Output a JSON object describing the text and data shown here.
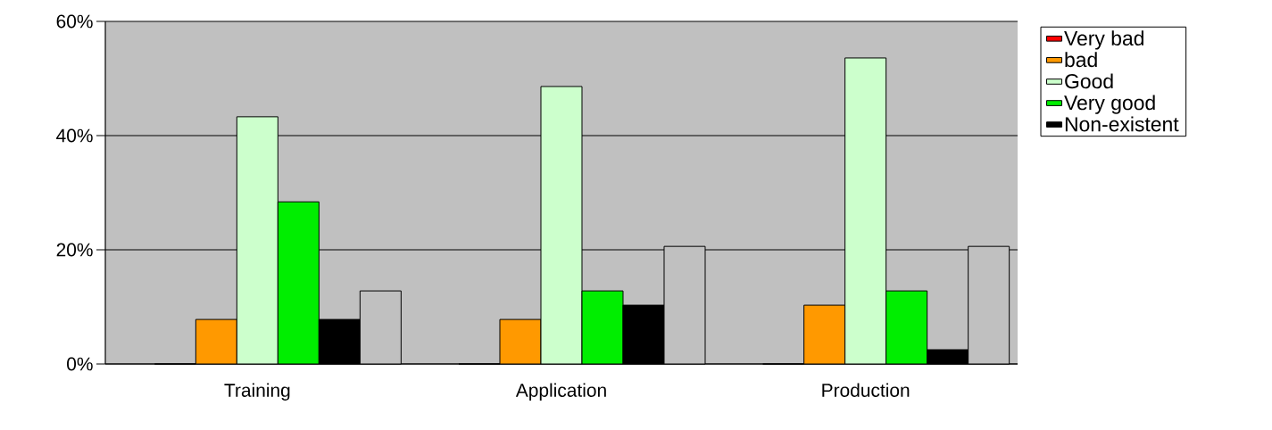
{
  "chart_data": {
    "type": "bar",
    "categories": [
      "Training",
      "Application",
      "Production"
    ],
    "series": [
      {
        "name": "Very bad",
        "color": "#ff0000",
        "values": [
          0,
          0,
          0
        ]
      },
      {
        "name": "bad",
        "color": "#ff9900",
        "values": [
          7.8,
          7.8,
          10.3
        ]
      },
      {
        "name": "Good",
        "color": "#ccffcc",
        "values": [
          43.3,
          48.6,
          53.6
        ]
      },
      {
        "name": "Very good",
        "color": "#00ee00",
        "values": [
          28.4,
          12.8,
          12.8
        ]
      },
      {
        "name": "Non-existent",
        "color": "#000000",
        "values": [
          7.8,
          10.3,
          2.5
        ]
      },
      {
        "color": "#c0c0c0",
        "values": [
          12.8,
          20.6,
          20.6
        ]
      }
    ],
    "ylim": [
      0,
      60
    ],
    "yticks": [
      {
        "value": 0,
        "label": "0%"
      },
      {
        "value": 20,
        "label": "20%"
      },
      {
        "value": 40,
        "label": "40%"
      },
      {
        "value": 60,
        "label": "60%"
      }
    ],
    "grid": "y",
    "legend": "top right"
  }
}
